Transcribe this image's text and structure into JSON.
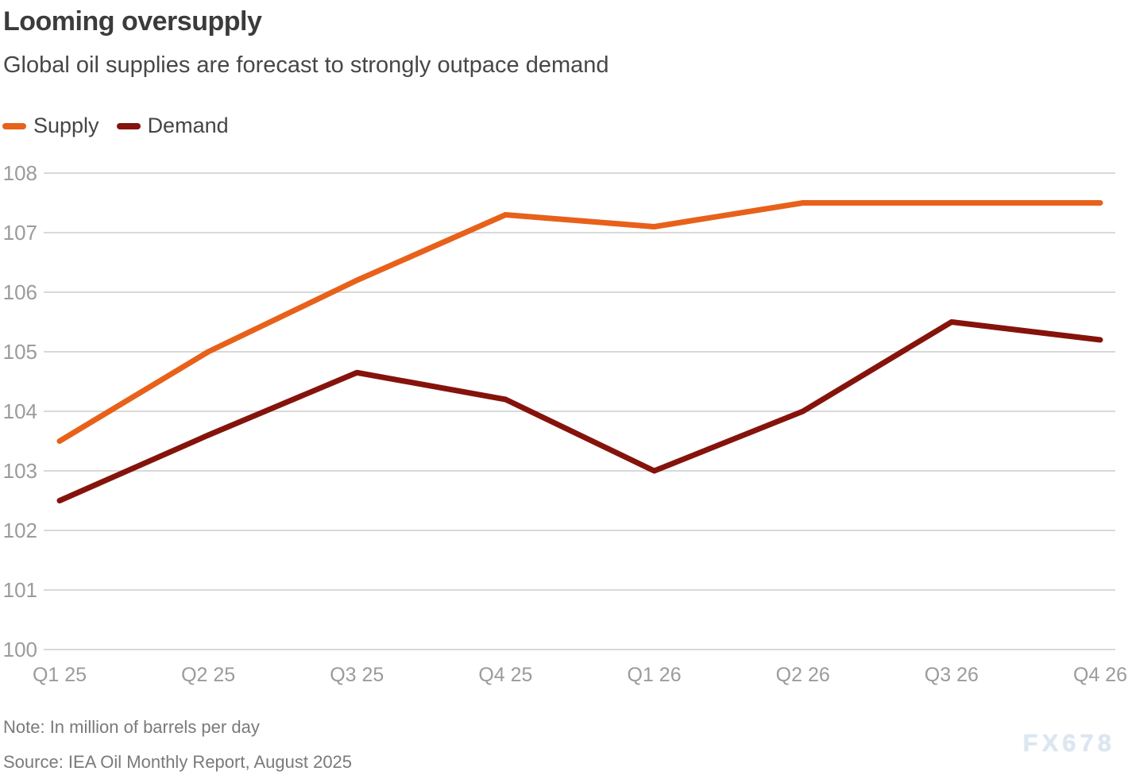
{
  "header": {
    "title": "Looming oversupply",
    "subtitle": "Global oil supplies are forecast to strongly outpace demand"
  },
  "chart_data": {
    "type": "line",
    "title": "Looming oversupply",
    "subtitle": "Global oil supplies are forecast to strongly outpace demand",
    "categories": [
      "Q1 25",
      "Q2 25",
      "Q3 25",
      "Q4 25",
      "Q1 26",
      "Q2 26",
      "Q3 26",
      "Q4 26"
    ],
    "series": [
      {
        "name": "Supply",
        "color": "#E8611A",
        "values": [
          103.5,
          105.0,
          106.2,
          107.3,
          107.1,
          107.5,
          107.5,
          107.5
        ]
      },
      {
        "name": "Demand",
        "color": "#85130C",
        "values": [
          102.5,
          103.6,
          104.65,
          104.2,
          103.0,
          104.0,
          105.5,
          105.2
        ]
      }
    ],
    "xlabel": "",
    "ylabel": "",
    "unit": "million barrels per day",
    "ylim": [
      100,
      108
    ],
    "ytick_step": 1,
    "yticks": [
      100,
      101,
      102,
      103,
      104,
      105,
      106,
      107,
      108
    ],
    "grid": "horizontal-only",
    "legend_position": "top-left"
  },
  "footer": {
    "note": "Note: In million of barrels per day",
    "source": "Source: IEA Oil Monthly Report, August 2025",
    "watermark": "FX678"
  },
  "colors": {
    "supply": "#E8611A",
    "demand": "#85130C",
    "grid": "#D9D9D9",
    "tick_label": "#9B9B9B",
    "title_text": "#3B3B3B",
    "subtitle_text": "#474747",
    "legend_text": "#454545",
    "footnote_text": "#7A7A7A",
    "watermark_text": "#DCE6F2"
  }
}
